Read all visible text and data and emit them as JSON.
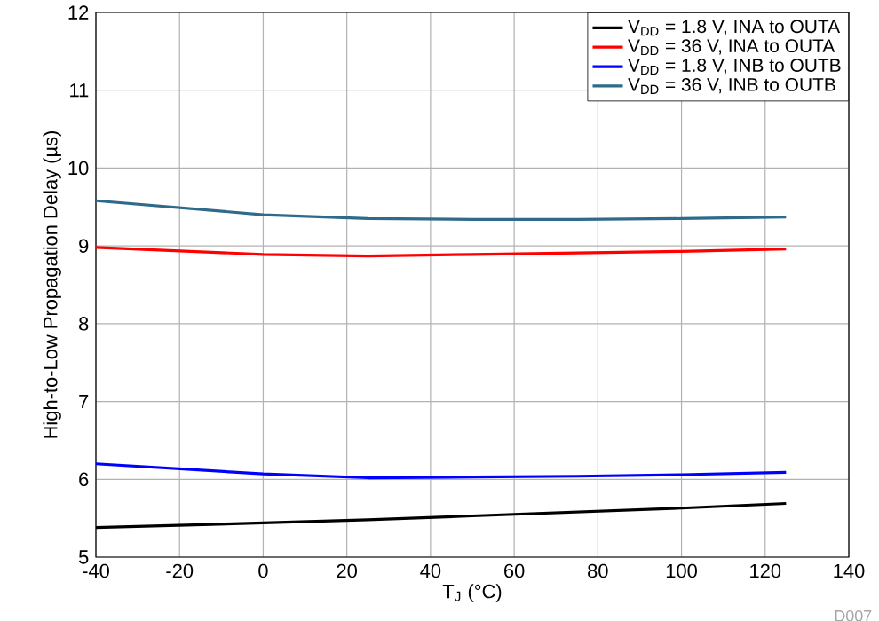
{
  "chart_data": {
    "type": "line",
    "xlabel": "T$_{J}$ (°C)",
    "ylabel": "High-to-Low Propagation Delay (µs)",
    "x": [
      -40,
      0,
      25,
      50,
      75,
      100,
      125
    ],
    "series": [
      {
        "name": "V$_{DD}$ = 1.8 V, INA to OUTA",
        "color": "#000000",
        "values": [
          5.38,
          5.44,
          5.48,
          5.53,
          5.58,
          5.63,
          5.69
        ]
      },
      {
        "name": "V$_{DD}$ = 36 V, INA to OUTA",
        "color": "#ff0000",
        "values": [
          8.98,
          8.89,
          8.87,
          8.89,
          8.91,
          8.93,
          8.96
        ]
      },
      {
        "name": "V$_{DD}$ = 1.8 V, INB to OUTB",
        "color": "#0000ff",
        "values": [
          6.2,
          6.07,
          6.02,
          6.03,
          6.04,
          6.06,
          6.09
        ]
      },
      {
        "name": "V$_{DD}$ = 36 V, INB to OUTB",
        "color": "#2e6a8a",
        "values": [
          9.58,
          9.4,
          9.35,
          9.34,
          9.34,
          9.35,
          9.37
        ]
      }
    ],
    "xlim": [
      -40,
      140
    ],
    "ylim": [
      5,
      12
    ],
    "xticks": [
      -40,
      -20,
      0,
      20,
      40,
      60,
      80,
      100,
      120,
      140
    ],
    "yticks": [
      5,
      6,
      7,
      8,
      9,
      10,
      11,
      12
    ],
    "grid": true,
    "legend": "top right",
    "marker": "none",
    "line_style": "solid",
    "annotations": [
      "D007"
    ]
  }
}
